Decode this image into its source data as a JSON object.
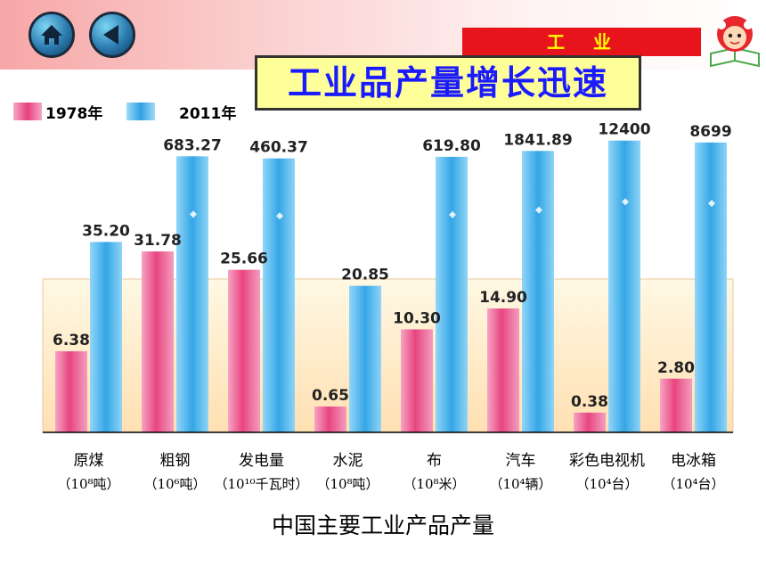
{
  "header": {
    "section_label": "工　业",
    "title": "工业品产量增长迅速",
    "icons": [
      "home-icon",
      "back-arrow-icon"
    ]
  },
  "colors": {
    "series_1978": "#ee5c8e",
    "series_2011": "#35a8e6",
    "section_tag": "#e8141b",
    "title_text": "#1a1aff"
  },
  "caption": "中国主要工业产品产量",
  "chart_data": {
    "type": "bar",
    "title": "",
    "legend": [
      "1978年",
      "2011年"
    ],
    "legend_position": "top-left",
    "categories": [
      {
        "name": "原煤",
        "unit": "（10⁸吨）"
      },
      {
        "name": "粗钢",
        "unit": "（10⁶吨）"
      },
      {
        "name": "发电量",
        "unit": "（10¹⁰千瓦时）"
      },
      {
        "name": "水泥",
        "unit": "（10⁸吨）"
      },
      {
        "name": "布",
        "unit": "（10⁸米）"
      },
      {
        "name": "汽车",
        "unit": "（10⁴辆）"
      },
      {
        "name": "彩色电视机",
        "unit": "（10⁴台）"
      },
      {
        "name": "电冰箱",
        "unit": "（10⁴台）"
      }
    ],
    "series": [
      {
        "name": "1978年",
        "values": [
          6.38,
          31.78,
          25.66,
          0.65,
          10.3,
          14.9,
          0.38,
          2.8
        ],
        "labels": [
          "6.38",
          "31.78",
          "25.66",
          "0.65",
          "10.30",
          "14.90",
          "0.38",
          "2.80"
        ]
      },
      {
        "name": "2011年",
        "values": [
          35.2,
          683.27,
          460.37,
          20.85,
          619.8,
          1841.89,
          12400,
          8699
        ],
        "labels": [
          "35.20",
          "683.27",
          "460.37",
          "20.85",
          "619.80",
          "1841.89",
          "12400",
          "8699"
        ]
      }
    ],
    "broken_axis": true,
    "grid": false
  }
}
